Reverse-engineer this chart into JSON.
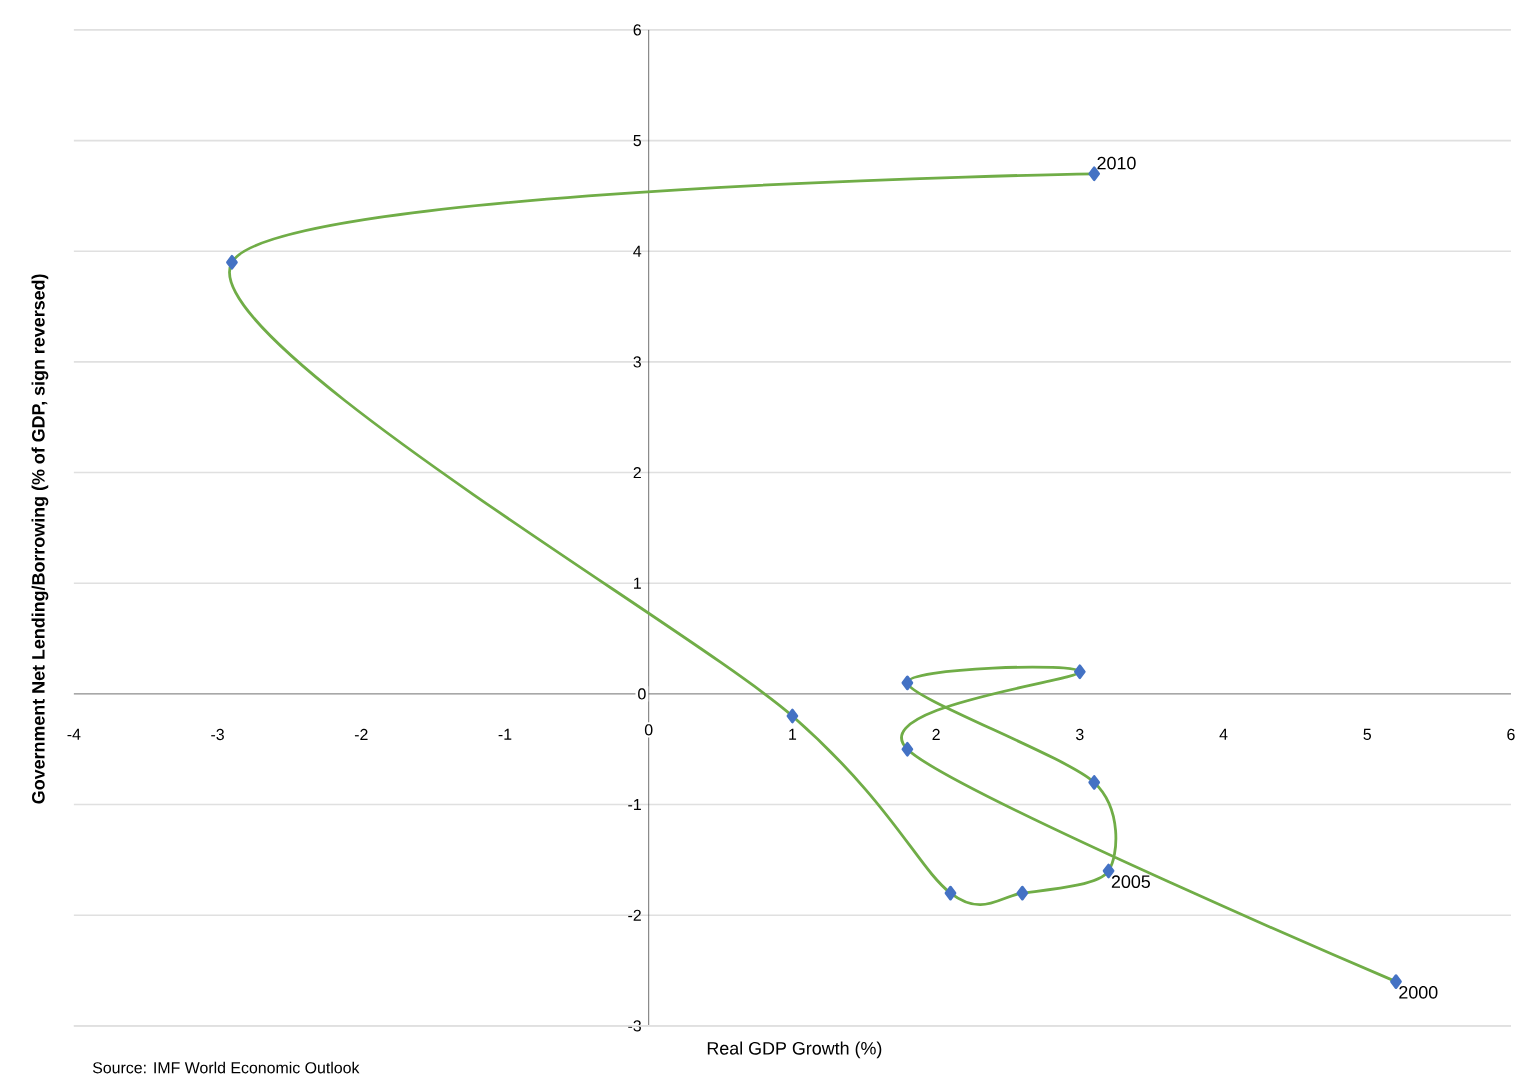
{
  "chart_data": {
    "type": "line",
    "xlabel": "Real GDP Growth (%)",
    "ylabel": "Government Net Lending/Borrowing (% of GDP,  sign reversed)",
    "x": [
      5.2,
      1.8,
      3.0,
      1.8,
      3.1,
      3.2,
      2.6,
      2.1,
      1.0,
      -2.9,
      3.1
    ],
    "series": [
      {
        "color": "#70ad47",
        "colors": [
          "#4472c4",
          "#4472c4",
          "#4472c4",
          "#4472c4",
          "#4472c4",
          "#4472c4",
          "#4472c4",
          "#4472c4",
          "#4472c4",
          "#4472c4",
          "#4472c4"
        ],
        "values": [
          -2.6,
          -0.5,
          0.2,
          0.1,
          -0.8,
          -1.6,
          -1.8,
          -1.8,
          -0.2,
          3.9,
          4.7
        ]
      }
    ],
    "marker": "diamond",
    "xlim": [
      -4,
      6
    ],
    "xticks": [
      -4,
      -3,
      -2,
      -1,
      0,
      1,
      2,
      3,
      4,
      5,
      6
    ],
    "ylim": [
      -3,
      6
    ],
    "yticks": [
      -3,
      -2,
      -1,
      0,
      1,
      2,
      3,
      4,
      5,
      6
    ],
    "grid": "y",
    "annotations": [
      {
        "text": "2010",
        "x": 3.1,
        "y": 4.7
      },
      {
        "text": "2005",
        "x": 3.2,
        "y": -1.6
      },
      {
        "text": "2000",
        "x": 5.2,
        "y": -2.6
      },
      "Source: IMF World Economic Outlook"
    ]
  }
}
